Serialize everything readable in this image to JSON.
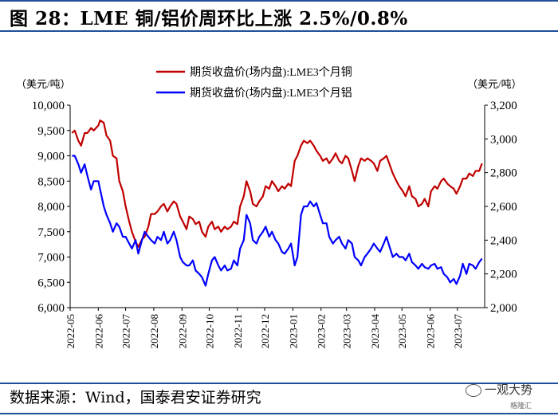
{
  "title": "图 28：LME 铜/铝价周环比上涨 2.5%/0.8%",
  "source": "数据来源：Wind，国泰君安证券研究",
  "watermark": "一观大势",
  "watermark_sub": "格隆汇",
  "colors": {
    "copper": "#c00000",
    "aluminum": "#0000ff",
    "rule": "#1f4e9a"
  },
  "chart_data": {
    "type": "line",
    "left_unit": "（美元/吨）",
    "right_unit": "（美元/吨）",
    "left_ylim": [
      6000,
      10000
    ],
    "left_ticks": [
      "6,000",
      "6,500",
      "7,000",
      "7,500",
      "8,000",
      "8,500",
      "9,000",
      "9,500",
      "10,000"
    ],
    "right_ylim": [
      2000,
      3200
    ],
    "right_ticks": [
      "2,000",
      "2,200",
      "2,400",
      "2,600",
      "2,800",
      "3,000",
      "3,200"
    ],
    "x_ticks": [
      "2022-05",
      "2022-06",
      "2022-07",
      "2022-08",
      "2022-09",
      "2022-10",
      "2022-11",
      "2022-12",
      "2023-01",
      "2023-02",
      "2023-03",
      "2023-04",
      "2023-05",
      "2023-06",
      "2023-07"
    ],
    "legend_position": "top-center",
    "grid": false,
    "series": [
      {
        "name": "期货收盘价(场内盘):LME3个月铜",
        "axis": "left",
        "color": "#c00000",
        "points": [
          [
            "2022-05-03",
            9450
          ],
          [
            "2022-05-06",
            9500
          ],
          [
            "2022-05-10",
            9300
          ],
          [
            "2022-05-13",
            9200
          ],
          [
            "2022-05-17",
            9450
          ],
          [
            "2022-05-20",
            9450
          ],
          [
            "2022-05-24",
            9550
          ],
          [
            "2022-05-27",
            9500
          ],
          [
            "2022-06-01",
            9600
          ],
          [
            "2022-06-03",
            9700
          ],
          [
            "2022-06-07",
            9650
          ],
          [
            "2022-06-10",
            9400
          ],
          [
            "2022-06-14",
            9300
          ],
          [
            "2022-06-17",
            9000
          ],
          [
            "2022-06-21",
            8950
          ],
          [
            "2022-06-24",
            8500
          ],
          [
            "2022-06-28",
            8300
          ],
          [
            "2022-07-01",
            8000
          ],
          [
            "2022-07-05",
            7700
          ],
          [
            "2022-07-08",
            7500
          ],
          [
            "2022-07-12",
            7300
          ],
          [
            "2022-07-15",
            7200
          ],
          [
            "2022-07-19",
            7350
          ],
          [
            "2022-07-22",
            7400
          ],
          [
            "2022-07-26",
            7600
          ],
          [
            "2022-07-29",
            7850
          ],
          [
            "2022-08-02",
            7850
          ],
          [
            "2022-08-05",
            7900
          ],
          [
            "2022-08-09",
            8000
          ],
          [
            "2022-08-12",
            8050
          ],
          [
            "2022-08-16",
            7900
          ],
          [
            "2022-08-19",
            8000
          ],
          [
            "2022-08-23",
            8100
          ],
          [
            "2022-08-26",
            8050
          ],
          [
            "2022-08-30",
            7800
          ],
          [
            "2022-09-02",
            7700
          ],
          [
            "2022-09-06",
            7550
          ],
          [
            "2022-09-09",
            7800
          ],
          [
            "2022-09-13",
            7750
          ],
          [
            "2022-09-16",
            7650
          ],
          [
            "2022-09-20",
            7700
          ],
          [
            "2022-09-23",
            7500
          ],
          [
            "2022-09-27",
            7400
          ],
          [
            "2022-09-30",
            7600
          ],
          [
            "2022-10-04",
            7700
          ],
          [
            "2022-10-07",
            7550
          ],
          [
            "2022-10-11",
            7600
          ],
          [
            "2022-10-14",
            7500
          ],
          [
            "2022-10-18",
            7600
          ],
          [
            "2022-10-21",
            7550
          ],
          [
            "2022-10-25",
            7600
          ],
          [
            "2022-10-28",
            7700
          ],
          [
            "2022-11-01",
            7650
          ],
          [
            "2022-11-04",
            8000
          ],
          [
            "2022-11-08",
            8200
          ],
          [
            "2022-11-11",
            8500
          ],
          [
            "2022-11-15",
            8300
          ],
          [
            "2022-11-18",
            8050
          ],
          [
            "2022-11-22",
            8000
          ],
          [
            "2022-11-25",
            8100
          ],
          [
            "2022-11-29",
            8200
          ],
          [
            "2022-12-02",
            8400
          ],
          [
            "2022-12-06",
            8350
          ],
          [
            "2022-12-09",
            8500
          ],
          [
            "2022-12-13",
            8400
          ],
          [
            "2022-12-16",
            8300
          ],
          [
            "2022-12-20",
            8400
          ],
          [
            "2022-12-23",
            8350
          ],
          [
            "2022-12-27",
            8450
          ],
          [
            "2022-12-30",
            8400
          ],
          [
            "2023-01-03",
            8900
          ],
          [
            "2023-01-06",
            9000
          ],
          [
            "2023-01-10",
            9200
          ],
          [
            "2023-01-13",
            9300
          ],
          [
            "2023-01-17",
            9250
          ],
          [
            "2023-01-20",
            9300
          ],
          [
            "2023-01-24",
            9200
          ],
          [
            "2023-01-27",
            9100
          ],
          [
            "2023-01-31",
            9000
          ],
          [
            "2023-02-03",
            8900
          ],
          [
            "2023-02-07",
            8950
          ],
          [
            "2023-02-10",
            8850
          ],
          [
            "2023-02-14",
            8950
          ],
          [
            "2023-02-17",
            9050
          ],
          [
            "2023-02-21",
            8900
          ],
          [
            "2023-02-24",
            8850
          ],
          [
            "2023-02-28",
            9000
          ],
          [
            "2023-03-03",
            8950
          ],
          [
            "2023-03-07",
            8700
          ],
          [
            "2023-03-10",
            8500
          ],
          [
            "2023-03-14",
            8800
          ],
          [
            "2023-03-17",
            8950
          ],
          [
            "2023-03-21",
            8900
          ],
          [
            "2023-03-24",
            8950
          ],
          [
            "2023-03-28",
            8900
          ],
          [
            "2023-03-31",
            8850
          ],
          [
            "2023-04-04",
            8700
          ],
          [
            "2023-04-07",
            8900
          ],
          [
            "2023-04-11",
            8950
          ],
          [
            "2023-04-14",
            9000
          ],
          [
            "2023-04-18",
            8800
          ],
          [
            "2023-04-21",
            8650
          ],
          [
            "2023-04-25",
            8500
          ],
          [
            "2023-04-28",
            8400
          ],
          [
            "2023-05-02",
            8300
          ],
          [
            "2023-05-05",
            8200
          ],
          [
            "2023-05-09",
            8400
          ],
          [
            "2023-05-12",
            8200
          ],
          [
            "2023-05-16",
            8150
          ],
          [
            "2023-05-19",
            8000
          ],
          [
            "2023-05-23",
            8050
          ],
          [
            "2023-05-26",
            8150
          ],
          [
            "2023-05-30",
            8000
          ],
          [
            "2023-06-02",
            8300
          ],
          [
            "2023-06-06",
            8400
          ],
          [
            "2023-06-09",
            8350
          ],
          [
            "2023-06-13",
            8500
          ],
          [
            "2023-06-16",
            8550
          ],
          [
            "2023-06-20",
            8450
          ],
          [
            "2023-06-23",
            8400
          ],
          [
            "2023-06-27",
            8350
          ],
          [
            "2023-06-30",
            8250
          ],
          [
            "2023-07-04",
            8400
          ],
          [
            "2023-07-07",
            8550
          ],
          [
            "2023-07-11",
            8550
          ],
          [
            "2023-07-14",
            8650
          ],
          [
            "2023-07-18",
            8600
          ],
          [
            "2023-07-21",
            8700
          ],
          [
            "2023-07-25",
            8700
          ],
          [
            "2023-07-28",
            8850
          ]
        ]
      },
      {
        "name": "期货收盘价(场内盘):LME3个月铝",
        "axis": "right",
        "color": "#0000ff",
        "points": [
          [
            "2022-05-03",
            2900
          ],
          [
            "2022-05-06",
            2900
          ],
          [
            "2022-05-10",
            2850
          ],
          [
            "2022-05-13",
            2800
          ],
          [
            "2022-05-17",
            2850
          ],
          [
            "2022-05-20",
            2780
          ],
          [
            "2022-05-24",
            2700
          ],
          [
            "2022-05-27",
            2750
          ],
          [
            "2022-06-01",
            2750
          ],
          [
            "2022-06-03",
            2700
          ],
          [
            "2022-06-07",
            2600
          ],
          [
            "2022-06-10",
            2550
          ],
          [
            "2022-06-14",
            2500
          ],
          [
            "2022-06-17",
            2450
          ],
          [
            "2022-06-21",
            2500
          ],
          [
            "2022-06-24",
            2480
          ],
          [
            "2022-06-28",
            2420
          ],
          [
            "2022-07-01",
            2420
          ],
          [
            "2022-07-05",
            2380
          ],
          [
            "2022-07-08",
            2350
          ],
          [
            "2022-07-12",
            2400
          ],
          [
            "2022-07-15",
            2320
          ],
          [
            "2022-07-19",
            2400
          ],
          [
            "2022-07-22",
            2450
          ],
          [
            "2022-07-26",
            2420
          ],
          [
            "2022-07-29",
            2400
          ],
          [
            "2022-08-02",
            2380
          ],
          [
            "2022-08-05",
            2420
          ],
          [
            "2022-08-09",
            2400
          ],
          [
            "2022-08-12",
            2450
          ],
          [
            "2022-08-16",
            2380
          ],
          [
            "2022-08-19",
            2400
          ],
          [
            "2022-08-23",
            2450
          ],
          [
            "2022-08-26",
            2400
          ],
          [
            "2022-08-30",
            2300
          ],
          [
            "2022-09-02",
            2270
          ],
          [
            "2022-09-06",
            2250
          ],
          [
            "2022-09-09",
            2250
          ],
          [
            "2022-09-13",
            2280
          ],
          [
            "2022-09-16",
            2220
          ],
          [
            "2022-09-20",
            2200
          ],
          [
            "2022-09-23",
            2180
          ],
          [
            "2022-09-27",
            2130
          ],
          [
            "2022-09-30",
            2200
          ],
          [
            "2022-10-04",
            2280
          ],
          [
            "2022-10-07",
            2300
          ],
          [
            "2022-10-11",
            2250
          ],
          [
            "2022-10-14",
            2220
          ],
          [
            "2022-10-18",
            2250
          ],
          [
            "2022-10-21",
            2220
          ],
          [
            "2022-10-25",
            2230
          ],
          [
            "2022-10-28",
            2280
          ],
          [
            "2022-11-01",
            2250
          ],
          [
            "2022-11-04",
            2350
          ],
          [
            "2022-11-08",
            2400
          ],
          [
            "2022-11-11",
            2550
          ],
          [
            "2022-11-15",
            2500
          ],
          [
            "2022-11-18",
            2400
          ],
          [
            "2022-11-22",
            2380
          ],
          [
            "2022-11-25",
            2420
          ],
          [
            "2022-11-29",
            2450
          ],
          [
            "2022-12-02",
            2480
          ],
          [
            "2022-12-06",
            2420
          ],
          [
            "2022-12-09",
            2450
          ],
          [
            "2022-12-13",
            2400
          ],
          [
            "2022-12-16",
            2380
          ],
          [
            "2022-12-20",
            2330
          ],
          [
            "2022-12-23",
            2320
          ],
          [
            "2022-12-27",
            2350
          ],
          [
            "2022-12-30",
            2380
          ],
          [
            "2023-01-03",
            2250
          ],
          [
            "2023-01-06",
            2300
          ],
          [
            "2023-01-10",
            2550
          ],
          [
            "2023-01-13",
            2600
          ],
          [
            "2023-01-17",
            2600
          ],
          [
            "2023-01-20",
            2630
          ],
          [
            "2023-01-24",
            2600
          ],
          [
            "2023-01-27",
            2620
          ],
          [
            "2023-01-31",
            2550
          ],
          [
            "2023-02-03",
            2500
          ],
          [
            "2023-02-07",
            2500
          ],
          [
            "2023-02-10",
            2420
          ],
          [
            "2023-02-14",
            2380
          ],
          [
            "2023-02-17",
            2400
          ],
          [
            "2023-02-21",
            2420
          ],
          [
            "2023-02-24",
            2380
          ],
          [
            "2023-02-28",
            2350
          ],
          [
            "2023-03-03",
            2400
          ],
          [
            "2023-03-07",
            2380
          ],
          [
            "2023-03-10",
            2300
          ],
          [
            "2023-03-14",
            2280
          ],
          [
            "2023-03-17",
            2250
          ],
          [
            "2023-03-21",
            2300
          ],
          [
            "2023-03-24",
            2320
          ],
          [
            "2023-03-28",
            2350
          ],
          [
            "2023-03-31",
            2380
          ],
          [
            "2023-04-04",
            2350
          ],
          [
            "2023-04-07",
            2330
          ],
          [
            "2023-04-11",
            2380
          ],
          [
            "2023-04-14",
            2420
          ],
          [
            "2023-04-18",
            2350
          ],
          [
            "2023-04-21",
            2300
          ],
          [
            "2023-04-25",
            2320
          ],
          [
            "2023-04-28",
            2300
          ],
          [
            "2023-05-02",
            2300
          ],
          [
            "2023-05-05",
            2280
          ],
          [
            "2023-05-09",
            2320
          ],
          [
            "2023-05-12",
            2270
          ],
          [
            "2023-05-16",
            2250
          ],
          [
            "2023-05-19",
            2230
          ],
          [
            "2023-05-23",
            2260
          ],
          [
            "2023-05-26",
            2240
          ],
          [
            "2023-05-30",
            2230
          ],
          [
            "2023-06-02",
            2250
          ],
          [
            "2023-06-06",
            2260
          ],
          [
            "2023-06-09",
            2230
          ],
          [
            "2023-06-13",
            2240
          ],
          [
            "2023-06-16",
            2200
          ],
          [
            "2023-06-20",
            2180
          ],
          [
            "2023-06-23",
            2150
          ],
          [
            "2023-06-27",
            2170
          ],
          [
            "2023-06-30",
            2140
          ],
          [
            "2023-07-04",
            2190
          ],
          [
            "2023-07-07",
            2260
          ],
          [
            "2023-07-11",
            2200
          ],
          [
            "2023-07-14",
            2260
          ],
          [
            "2023-07-18",
            2250
          ],
          [
            "2023-07-21",
            2230
          ],
          [
            "2023-07-25",
            2270
          ],
          [
            "2023-07-28",
            2290
          ]
        ]
      }
    ]
  }
}
